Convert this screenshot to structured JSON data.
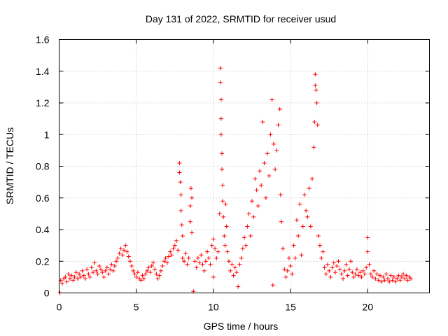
{
  "chart_data": {
    "type": "scatter",
    "title": "Day 131 of 2022, SRMTID for receiver usud",
    "xlabel": "GPS time / hours",
    "ylabel": "SRMTID / TECUs",
    "xlim": [
      0,
      24
    ],
    "ylim": [
      0,
      1.6
    ],
    "xticks": [
      0,
      5,
      10,
      15,
      20
    ],
    "yticks": [
      0,
      0.2,
      0.4,
      0.6,
      0.8,
      1,
      1.2,
      1.4,
      1.6
    ],
    "xtick_labels": [
      "0",
      "5",
      "10",
      "15",
      "20"
    ],
    "ytick_labels": [
      "0",
      "0.2",
      "0.4",
      "0.6",
      "0.8",
      "1",
      "1.2",
      "1.4",
      "1.6"
    ],
    "grid": true,
    "marker": "+",
    "color": "#ff0000",
    "series": [
      {
        "name": "SRMTID",
        "points": [
          [
            0.05,
            0.0
          ],
          [
            0.1,
            0.08
          ],
          [
            0.2,
            0.06
          ],
          [
            0.3,
            0.09
          ],
          [
            0.4,
            0.1
          ],
          [
            0.5,
            0.07
          ],
          [
            0.6,
            0.12
          ],
          [
            0.7,
            0.09
          ],
          [
            0.8,
            0.11
          ],
          [
            0.9,
            0.08
          ],
          [
            1.0,
            0.1
          ],
          [
            1.1,
            0.13
          ],
          [
            1.2,
            0.09
          ],
          [
            1.3,
            0.12
          ],
          [
            1.4,
            0.1
          ],
          [
            1.5,
            0.14
          ],
          [
            1.6,
            0.11
          ],
          [
            1.7,
            0.09
          ],
          [
            1.8,
            0.15
          ],
          [
            1.9,
            0.12
          ],
          [
            2.0,
            0.1
          ],
          [
            2.1,
            0.16
          ],
          [
            2.2,
            0.13
          ],
          [
            2.3,
            0.19
          ],
          [
            2.4,
            0.14
          ],
          [
            2.5,
            0.12
          ],
          [
            2.6,
            0.17
          ],
          [
            2.7,
            0.15
          ],
          [
            2.8,
            0.13
          ],
          [
            2.9,
            0.1
          ],
          [
            3.0,
            0.14
          ],
          [
            3.1,
            0.16
          ],
          [
            3.2,
            0.12
          ],
          [
            3.3,
            0.15
          ],
          [
            3.4,
            0.18
          ],
          [
            3.5,
            0.14
          ],
          [
            3.6,
            0.17
          ],
          [
            3.7,
            0.2
          ],
          [
            3.8,
            0.22
          ],
          [
            3.9,
            0.25
          ],
          [
            4.0,
            0.28
          ],
          [
            4.1,
            0.24
          ],
          [
            4.2,
            0.27
          ],
          [
            4.3,
            0.3
          ],
          [
            4.4,
            0.26
          ],
          [
            4.5,
            0.23
          ],
          [
            4.6,
            0.2
          ],
          [
            4.7,
            0.17
          ],
          [
            4.8,
            0.14
          ],
          [
            4.9,
            0.12
          ],
          [
            5.0,
            0.1
          ],
          [
            5.1,
            0.13
          ],
          [
            5.2,
            0.09
          ],
          [
            5.3,
            0.08
          ],
          [
            5.4,
            0.11
          ],
          [
            5.5,
            0.09
          ],
          [
            5.6,
            0.12
          ],
          [
            5.7,
            0.14
          ],
          [
            5.8,
            0.16
          ],
          [
            5.9,
            0.13
          ],
          [
            6.0,
            0.17
          ],
          [
            6.1,
            0.19
          ],
          [
            6.2,
            0.15
          ],
          [
            6.3,
            0.12
          ],
          [
            6.4,
            0.09
          ],
          [
            6.5,
            0.11
          ],
          [
            6.6,
            0.14
          ],
          [
            6.7,
            0.17
          ],
          [
            6.8,
            0.2
          ],
          [
            6.9,
            0.22
          ],
          [
            7.0,
            0.19
          ],
          [
            7.1,
            0.23
          ],
          [
            7.2,
            0.26
          ],
          [
            7.3,
            0.24
          ],
          [
            7.4,
            0.28
          ],
          [
            7.5,
            0.3
          ],
          [
            7.6,
            0.33
          ],
          [
            7.7,
            0.27
          ],
          [
            7.8,
            0.82
          ],
          [
            7.8,
            0.76
          ],
          [
            7.85,
            0.7
          ],
          [
            7.9,
            0.62
          ],
          [
            7.9,
            0.52
          ],
          [
            7.95,
            0.43
          ],
          [
            8.0,
            0.36
          ],
          [
            8.0,
            0.22
          ],
          [
            8.1,
            0.2
          ],
          [
            8.2,
            0.25
          ],
          [
            8.3,
            0.18
          ],
          [
            8.4,
            0.22
          ],
          [
            8.5,
            0.45
          ],
          [
            8.5,
            0.55
          ],
          [
            8.55,
            0.66
          ],
          [
            8.6,
            0.6
          ],
          [
            8.6,
            0.38
          ],
          [
            8.7,
            0.01
          ],
          [
            8.8,
            0.2
          ],
          [
            8.9,
            0.16
          ],
          [
            9.0,
            0.22
          ],
          [
            9.1,
            0.19
          ],
          [
            9.2,
            0.24
          ],
          [
            9.3,
            0.18
          ],
          [
            9.4,
            0.14
          ],
          [
            9.5,
            0.2
          ],
          [
            9.6,
            0.26
          ],
          [
            9.7,
            0.22
          ],
          [
            9.8,
            0.18
          ],
          [
            9.9,
            0.3
          ],
          [
            10.0,
            0.34
          ],
          [
            10.0,
            0.1
          ],
          [
            10.1,
            0.28
          ],
          [
            10.2,
            0.22
          ],
          [
            10.3,
            0.26
          ],
          [
            10.4,
            0.5
          ],
          [
            10.45,
            1.42
          ],
          [
            10.45,
            1.33
          ],
          [
            10.5,
            1.22
          ],
          [
            10.5,
            1.1
          ],
          [
            10.5,
            1.0
          ],
          [
            10.55,
            0.88
          ],
          [
            10.55,
            0.78
          ],
          [
            10.6,
            0.68
          ],
          [
            10.6,
            0.58
          ],
          [
            10.65,
            0.48
          ],
          [
            10.7,
            0.36
          ],
          [
            10.75,
            0.3
          ],
          [
            10.8,
            0.56
          ],
          [
            10.85,
            0.42
          ],
          [
            10.9,
            0.26
          ],
          [
            11.0,
            0.2
          ],
          [
            11.1,
            0.14
          ],
          [
            11.2,
            0.18
          ],
          [
            11.3,
            0.11
          ],
          [
            11.4,
            0.16
          ],
          [
            11.5,
            0.13
          ],
          [
            11.6,
            0.04
          ],
          [
            11.7,
            0.18
          ],
          [
            11.8,
            0.22
          ],
          [
            11.9,
            0.28
          ],
          [
            12.0,
            0.35
          ],
          [
            12.1,
            0.3
          ],
          [
            12.2,
            0.42
          ],
          [
            12.3,
            0.5
          ],
          [
            12.4,
            0.36
          ],
          [
            12.5,
            0.58
          ],
          [
            12.6,
            0.48
          ],
          [
            12.7,
            0.72
          ],
          [
            12.8,
            0.65
          ],
          [
            12.9,
            0.55
          ],
          [
            13.0,
            0.77
          ],
          [
            13.1,
            0.68
          ],
          [
            13.2,
            1.08
          ],
          [
            13.3,
            0.82
          ],
          [
            13.4,
            0.6
          ],
          [
            13.5,
            0.88
          ],
          [
            13.6,
            0.74
          ],
          [
            13.7,
            1.0
          ],
          [
            13.8,
            1.22
          ],
          [
            13.85,
            0.05
          ],
          [
            13.9,
            0.94
          ],
          [
            14.0,
            0.78
          ],
          [
            14.1,
            0.9
          ],
          [
            14.2,
            1.06
          ],
          [
            14.3,
            1.16
          ],
          [
            14.35,
            0.62
          ],
          [
            14.4,
            0.45
          ],
          [
            14.5,
            0.28
          ],
          [
            14.6,
            0.15
          ],
          [
            14.7,
            0.1
          ],
          [
            14.8,
            0.14
          ],
          [
            14.9,
            0.22
          ],
          [
            15.0,
            0.17
          ],
          [
            15.1,
            0.12
          ],
          [
            15.2,
            0.3
          ],
          [
            15.3,
            0.22
          ],
          [
            15.4,
            0.46
          ],
          [
            15.5,
            0.36
          ],
          [
            15.6,
            0.56
          ],
          [
            15.7,
            0.24
          ],
          [
            15.8,
            0.42
          ],
          [
            15.9,
            0.62
          ],
          [
            16.0,
            0.52
          ],
          [
            16.1,
            0.48
          ],
          [
            16.2,
            0.66
          ],
          [
            16.3,
            0.42
          ],
          [
            16.4,
            0.72
          ],
          [
            16.5,
            0.92
          ],
          [
            16.55,
            1.08
          ],
          [
            16.6,
            1.38
          ],
          [
            16.6,
            1.31
          ],
          [
            16.65,
            1.28
          ],
          [
            16.7,
            1.2
          ],
          [
            16.75,
            1.06
          ],
          [
            16.8,
            0.36
          ],
          [
            16.9,
            0.3
          ],
          [
            17.0,
            0.22
          ],
          [
            17.1,
            0.26
          ],
          [
            17.2,
            0.16
          ],
          [
            17.3,
            0.12
          ],
          [
            17.4,
            0.18
          ],
          [
            17.5,
            0.14
          ],
          [
            17.6,
            0.1
          ],
          [
            17.7,
            0.16
          ],
          [
            17.8,
            0.19
          ],
          [
            17.9,
            0.13
          ],
          [
            18.0,
            0.17
          ],
          [
            18.1,
            0.2
          ],
          [
            18.2,
            0.15
          ],
          [
            18.3,
            0.12
          ],
          [
            18.4,
            0.09
          ],
          [
            18.5,
            0.14
          ],
          [
            18.6,
            0.18
          ],
          [
            18.7,
            0.11
          ],
          [
            18.8,
            0.15
          ],
          [
            18.9,
            0.2
          ],
          [
            19.0,
            0.13
          ],
          [
            19.1,
            0.1
          ],
          [
            19.2,
            0.12
          ],
          [
            19.3,
            0.15
          ],
          [
            19.4,
            0.11
          ],
          [
            19.5,
            0.13
          ],
          [
            19.6,
            0.1
          ],
          [
            19.7,
            0.14
          ],
          [
            19.8,
            0.12
          ],
          [
            19.9,
            0.16
          ],
          [
            20.0,
            0.35
          ],
          [
            20.0,
            0.26
          ],
          [
            20.1,
            0.18
          ],
          [
            20.2,
            0.12
          ],
          [
            20.3,
            0.1
          ],
          [
            20.4,
            0.14
          ],
          [
            20.5,
            0.09
          ],
          [
            20.6,
            0.12
          ],
          [
            20.7,
            0.08
          ],
          [
            20.8,
            0.11
          ],
          [
            20.9,
            0.07
          ],
          [
            21.0,
            0.1
          ],
          [
            21.1,
            0.08
          ],
          [
            21.2,
            0.12
          ],
          [
            21.3,
            0.09
          ],
          [
            21.4,
            0.07
          ],
          [
            21.5,
            0.11
          ],
          [
            21.6,
            0.08
          ],
          [
            21.7,
            0.1
          ],
          [
            21.8,
            0.07
          ],
          [
            21.9,
            0.09
          ],
          [
            22.0,
            0.11
          ],
          [
            22.1,
            0.08
          ],
          [
            22.2,
            0.1
          ],
          [
            22.3,
            0.12
          ],
          [
            22.4,
            0.09
          ],
          [
            22.5,
            0.11
          ],
          [
            22.6,
            0.08
          ],
          [
            22.7,
            0.1
          ],
          [
            22.8,
            0.09
          ]
        ]
      }
    ]
  }
}
